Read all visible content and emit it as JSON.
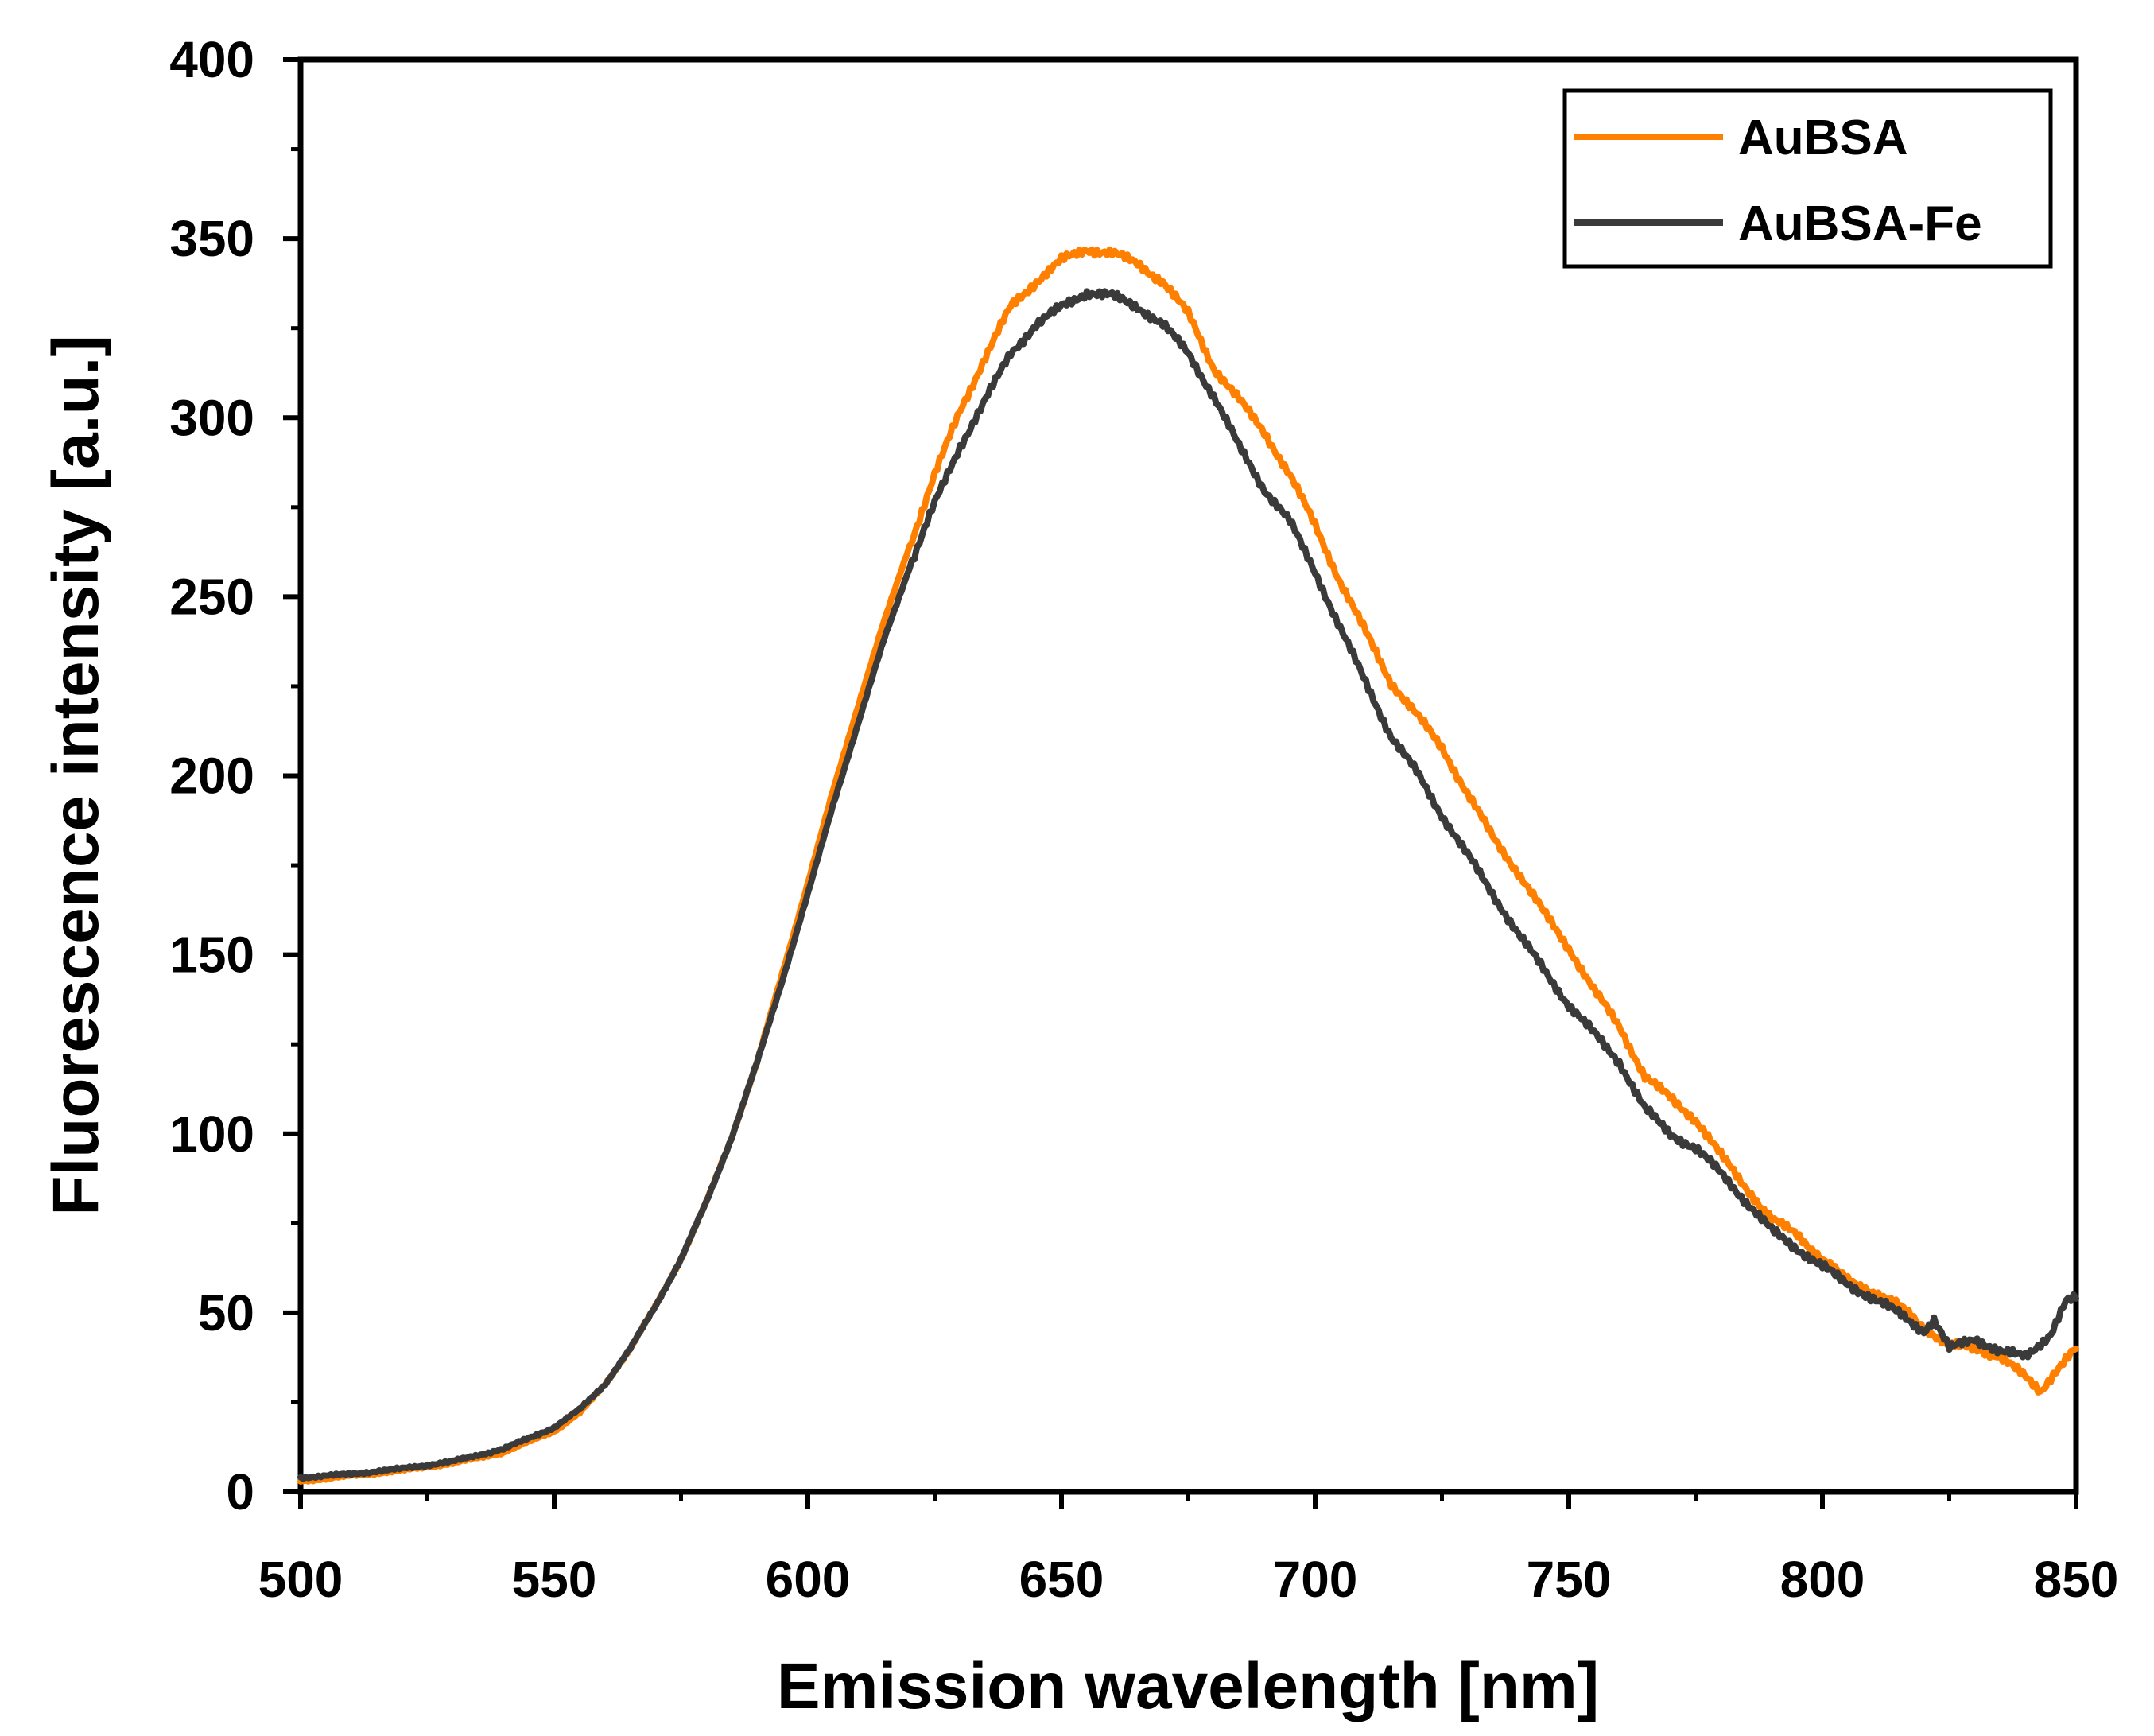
{
  "chart_data": {
    "type": "line",
    "title": "",
    "xlabel": "Emission wavelength [nm]",
    "ylabel": "Fluorescence intensity [a.u.]",
    "xlim": [
      500,
      850
    ],
    "ylim": [
      0,
      400
    ],
    "xticks": [
      500,
      550,
      600,
      650,
      700,
      750,
      800,
      850
    ],
    "yticks": [
      0,
      50,
      100,
      150,
      200,
      250,
      300,
      350,
      400
    ],
    "x_minor_step": 25,
    "y_minor_step": 25,
    "grid": false,
    "legend_position": "top-right",
    "series": [
      {
        "name": "AuBSA",
        "color": "#FF8000",
        "points": [
          [
            500,
            3
          ],
          [
            510,
            4.5
          ],
          [
            520,
            6
          ],
          [
            530,
            8
          ],
          [
            540,
            11
          ],
          [
            550,
            17
          ],
          [
            555,
            22
          ],
          [
            560,
            30
          ],
          [
            565,
            40
          ],
          [
            570,
            52
          ],
          [
            575,
            65
          ],
          [
            580,
            81
          ],
          [
            585,
            99
          ],
          [
            590,
            120
          ],
          [
            595,
            145
          ],
          [
            600,
            170
          ],
          [
            605,
            196
          ],
          [
            610,
            220
          ],
          [
            615,
            243
          ],
          [
            620,
            264
          ],
          [
            625,
            284
          ],
          [
            630,
            302
          ],
          [
            635,
            317
          ],
          [
            640,
            331
          ],
          [
            645,
            338
          ],
          [
            650,
            344
          ],
          [
            655,
            347
          ],
          [
            660,
            346
          ],
          [
            665,
            343
          ],
          [
            670,
            338
          ],
          [
            675,
            329
          ],
          [
            680,
            314
          ],
          [
            685,
            305
          ],
          [
            690,
            296
          ],
          [
            695,
            284
          ],
          [
            700,
            270
          ],
          [
            705,
            254
          ],
          [
            710,
            240
          ],
          [
            715,
            226
          ],
          [
            720,
            217
          ],
          [
            725,
            208
          ],
          [
            730,
            195
          ],
          [
            735,
            183
          ],
          [
            740,
            173
          ],
          [
            745,
            162
          ],
          [
            750,
            152
          ],
          [
            755,
            140
          ],
          [
            760,
            130
          ],
          [
            765,
            116
          ],
          [
            770,
            110
          ],
          [
            775,
            104
          ],
          [
            780,
            94
          ],
          [
            785,
            85
          ],
          [
            790,
            76
          ],
          [
            795,
            72
          ],
          [
            800,
            65
          ],
          [
            805,
            59
          ],
          [
            810,
            56
          ],
          [
            815,
            52
          ],
          [
            820,
            46
          ],
          [
            825,
            41
          ],
          [
            830,
            40
          ],
          [
            835,
            38
          ],
          [
            840,
            32
          ],
          [
            843,
            28
          ],
          [
            846,
            34
          ],
          [
            850,
            40
          ]
        ]
      },
      {
        "name": "AuBSA-Fe",
        "color": "#3A3A3A",
        "points": [
          [
            500,
            4
          ],
          [
            510,
            5
          ],
          [
            520,
            6.5
          ],
          [
            530,
            8.5
          ],
          [
            540,
            12
          ],
          [
            550,
            18
          ],
          [
            555,
            23
          ],
          [
            560,
            30
          ],
          [
            565,
            40
          ],
          [
            570,
            52
          ],
          [
            575,
            65
          ],
          [
            580,
            81
          ],
          [
            585,
            99
          ],
          [
            590,
            120
          ],
          [
            595,
            143
          ],
          [
            600,
            167
          ],
          [
            605,
            192
          ],
          [
            610,
            215
          ],
          [
            615,
            238
          ],
          [
            620,
            258
          ],
          [
            625,
            276
          ],
          [
            630,
            292
          ],
          [
            635,
            305
          ],
          [
            640,
            318
          ],
          [
            645,
            326
          ],
          [
            650,
            331
          ],
          [
            655,
            335
          ],
          [
            660,
            334
          ],
          [
            665,
            331
          ],
          [
            670,
            326
          ],
          [
            675,
            318
          ],
          [
            680,
            306
          ],
          [
            685,
            292
          ],
          [
            690,
            280
          ],
          [
            695,
            271
          ],
          [
            700,
            257
          ],
          [
            705,
            241
          ],
          [
            710,
            226
          ],
          [
            715,
            211
          ],
          [
            720,
            201
          ],
          [
            725,
            189
          ],
          [
            730,
            178
          ],
          [
            735,
            167
          ],
          [
            740,
            156
          ],
          [
            745,
            146
          ],
          [
            750,
            136
          ],
          [
            755,
            128
          ],
          [
            760,
            120
          ],
          [
            765,
            107
          ],
          [
            770,
            100
          ],
          [
            775,
            96
          ],
          [
            780,
            89
          ],
          [
            785,
            81
          ],
          [
            790,
            73
          ],
          [
            795,
            68
          ],
          [
            800,
            63
          ],
          [
            805,
            58
          ],
          [
            810,
            54
          ],
          [
            815,
            50
          ],
          [
            820,
            45
          ],
          [
            822,
            48
          ],
          [
            825,
            40
          ],
          [
            830,
            43
          ],
          [
            835,
            39
          ],
          [
            840,
            38
          ],
          [
            845,
            44
          ],
          [
            848,
            53
          ],
          [
            850,
            54
          ]
        ]
      }
    ]
  }
}
